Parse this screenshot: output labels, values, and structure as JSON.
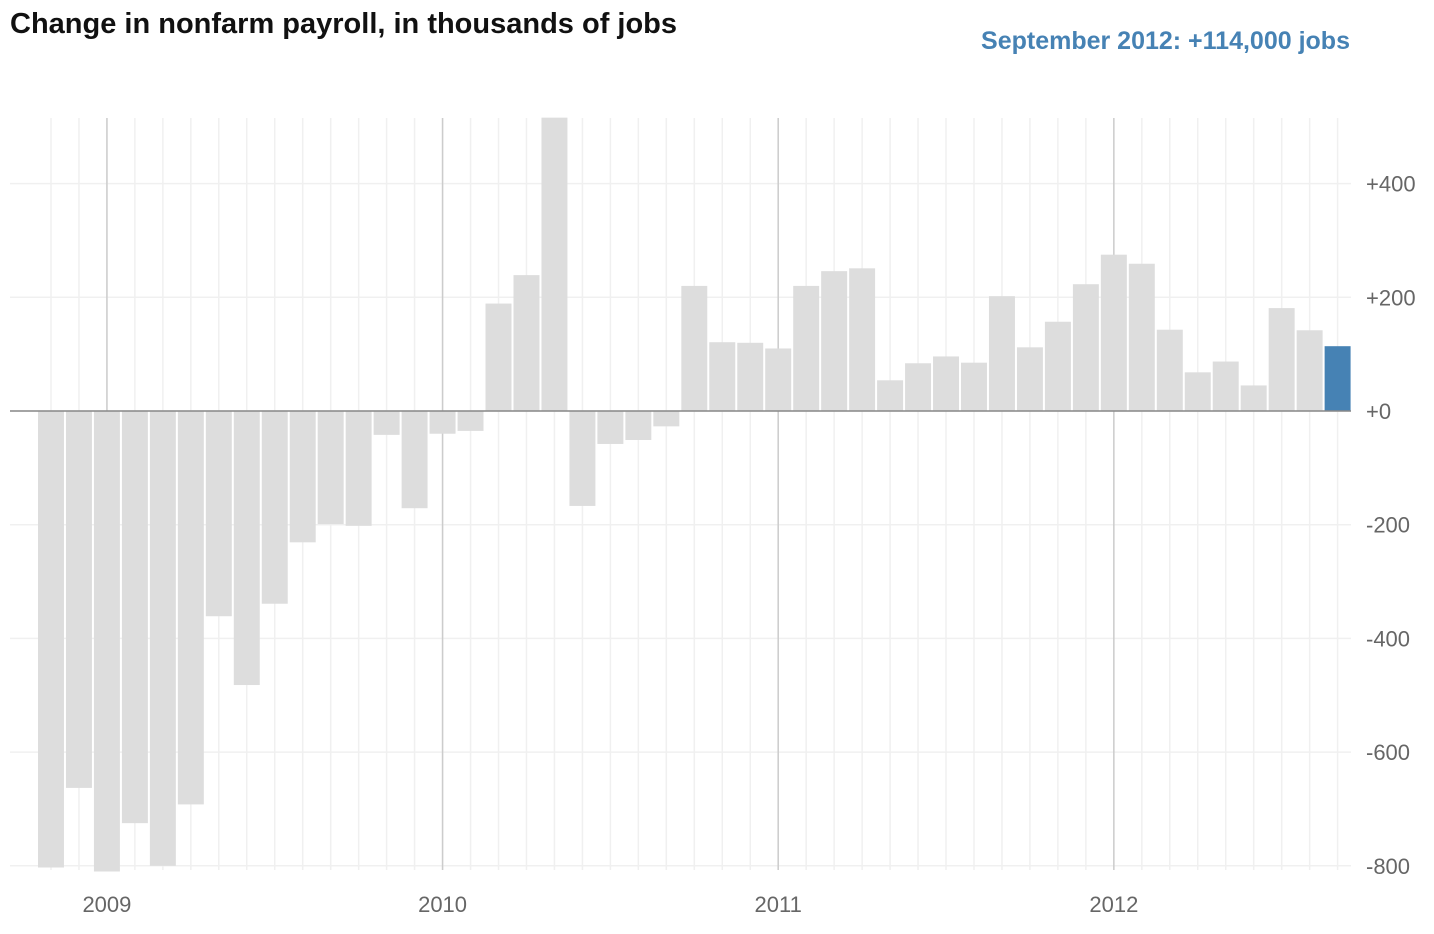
{
  "title": "Change in nonfarm payroll, in thousands of jobs",
  "highlight_label": "September 2012: +114,000 jobs",
  "colors": {
    "bar": "#dddddd",
    "highlight": "#4682b4",
    "grid_minor": "#f0f0f0",
    "grid_major": "#cccccc",
    "zero_line": "#888888"
  },
  "chart_data": {
    "type": "bar",
    "xlabel": "",
    "ylabel": "",
    "categories": [
      "2008-11",
      "2008-12",
      "2009-01",
      "2009-02",
      "2009-03",
      "2009-04",
      "2009-05",
      "2009-06",
      "2009-07",
      "2009-08",
      "2009-09",
      "2009-10",
      "2009-11",
      "2009-12",
      "2010-01",
      "2010-02",
      "2010-03",
      "2010-04",
      "2010-05",
      "2010-06",
      "2010-07",
      "2010-08",
      "2010-09",
      "2010-10",
      "2010-11",
      "2010-12",
      "2011-01",
      "2011-02",
      "2011-03",
      "2011-04",
      "2011-05",
      "2011-06",
      "2011-07",
      "2011-08",
      "2011-09",
      "2011-10",
      "2011-11",
      "2011-12",
      "2012-01",
      "2012-02",
      "2012-03",
      "2012-04",
      "2012-05",
      "2012-06",
      "2012-07",
      "2012-08",
      "2012-09"
    ],
    "values": [
      -803,
      -663,
      -839,
      -725,
      -800,
      -692,
      -361,
      -482,
      -339,
      -231,
      -199,
      -202,
      -42,
      -171,
      -40,
      -35,
      189,
      239,
      516,
      -167,
      -58,
      -51,
      -27,
      220,
      121,
      120,
      110,
      220,
      246,
      251,
      54,
      84,
      96,
      85,
      202,
      112,
      157,
      223,
      275,
      259,
      143,
      68,
      87,
      45,
      181,
      142,
      114
    ],
    "highlight_index": 46,
    "ylim": [
      -810,
      516
    ],
    "yticks": [
      400,
      200,
      0,
      -200,
      -400,
      -600,
      -800
    ],
    "ytick_labels": [
      "+400",
      "+200",
      "+0",
      "-200",
      "-400",
      "-600",
      "-800"
    ],
    "xtick_labels": [
      {
        "label": "2009",
        "at": "2009-01"
      },
      {
        "label": "2010",
        "at": "2010-01"
      },
      {
        "label": "2011",
        "at": "2011-01"
      },
      {
        "label": "2012",
        "at": "2012-01"
      }
    ],
    "grid": true,
    "legend": "none"
  }
}
